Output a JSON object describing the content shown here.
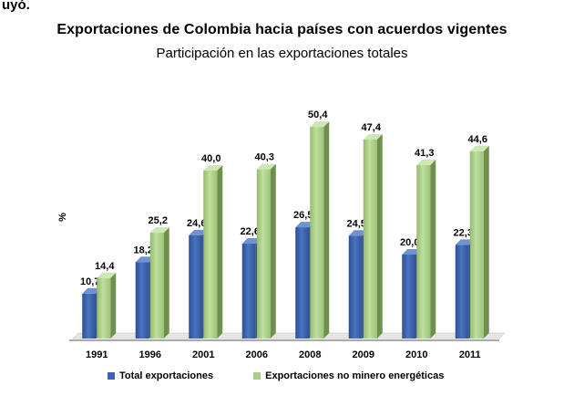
{
  "fragment_text": "uyó.",
  "chart_data": {
    "type": "bar",
    "title": "Exportaciones de Colombia hacia países con acuerdos vigentes",
    "subtitle": "Participación en las exportaciones totales",
    "ylabel": "%",
    "xlabel": "",
    "categories": [
      "1991",
      "1996",
      "2001",
      "2006",
      "2008",
      "2009",
      "2010",
      "2011"
    ],
    "series": [
      {
        "name": "Total exportaciones",
        "values": [
          10.7,
          18.2,
          24.6,
          22.6,
          26.5,
          24.5,
          20.0,
          22.3
        ],
        "labels": [
          "10,7",
          "18,2",
          "24,6",
          "22,6",
          "26,5",
          "24,5",
          "20,0",
          "22,3"
        ],
        "color": "#3c63ae"
      },
      {
        "name": "Exportaciones no minero energéticas",
        "values": [
          14.4,
          25.2,
          40.0,
          40.3,
          50.4,
          47.4,
          41.3,
          44.6
        ],
        "labels": [
          "14,4",
          "25,2",
          "40,0",
          "40,3",
          "50,4",
          "47,4",
          "41,3",
          "44,6"
        ],
        "color": "#a8cd84"
      }
    ],
    "ylim": [
      0,
      55
    ],
    "grid": false,
    "legend": "bottom"
  }
}
